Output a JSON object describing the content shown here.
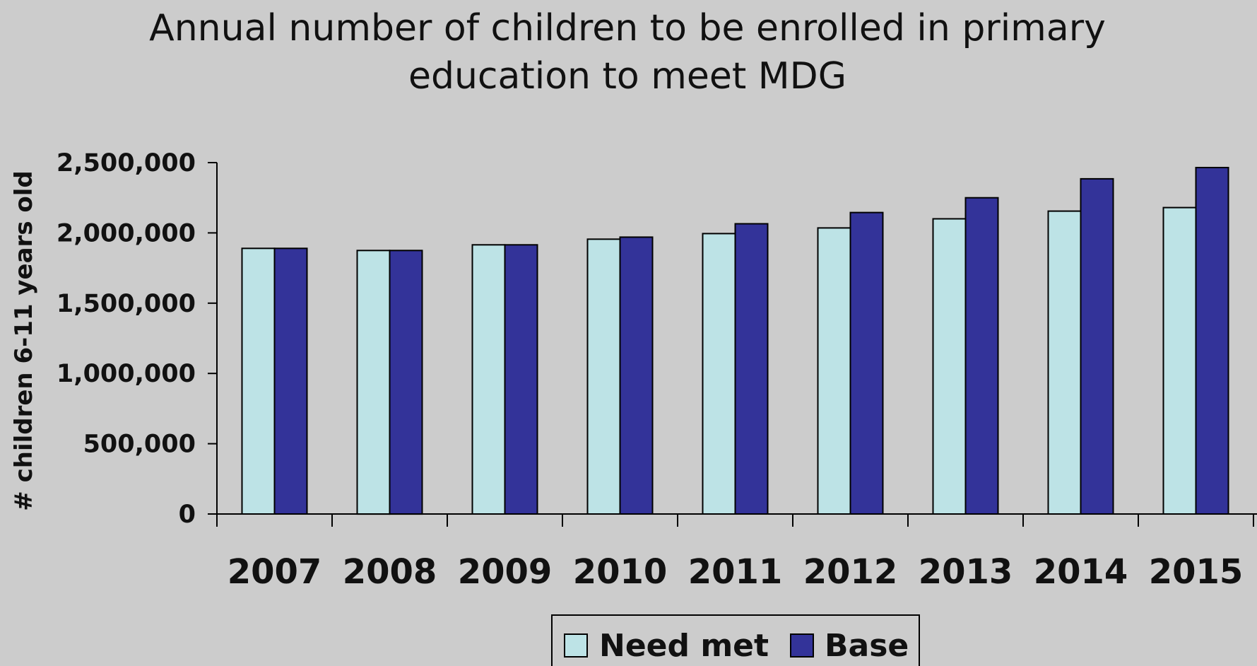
{
  "chart_data": {
    "type": "bar",
    "title_lines": [
      "Annual number of children to be enrolled in primary",
      "education to meet MDG"
    ],
    "title": "Annual number of children to be enrolled in primary education to meet MDG",
    "xlabel": "",
    "ylabel": "# children 6-11 years old",
    "categories": [
      "2007",
      "2008",
      "2009",
      "2010",
      "2011",
      "2012",
      "2013",
      "2014",
      "2015"
    ],
    "series": [
      {
        "name": "Need met",
        "color": "#bde3e6",
        "values": [
          1890000,
          1875000,
          1915000,
          1955000,
          1995000,
          2035000,
          2100000,
          2155000,
          2180000
        ]
      },
      {
        "name": "Base",
        "color": "#333399",
        "values": [
          1890000,
          1875000,
          1915000,
          1970000,
          2065000,
          2145000,
          2250000,
          2385000,
          2465000
        ]
      }
    ],
    "yticks": [
      0,
      500000,
      1000000,
      1500000,
      2000000,
      2500000
    ],
    "ytick_labels": [
      "0",
      "500,000",
      "1,000,000",
      "1,500,000",
      "2,000,000",
      "2,500,000"
    ],
    "ylim": [
      0,
      2500000
    ],
    "grid": false,
    "legend_position": "bottom"
  }
}
